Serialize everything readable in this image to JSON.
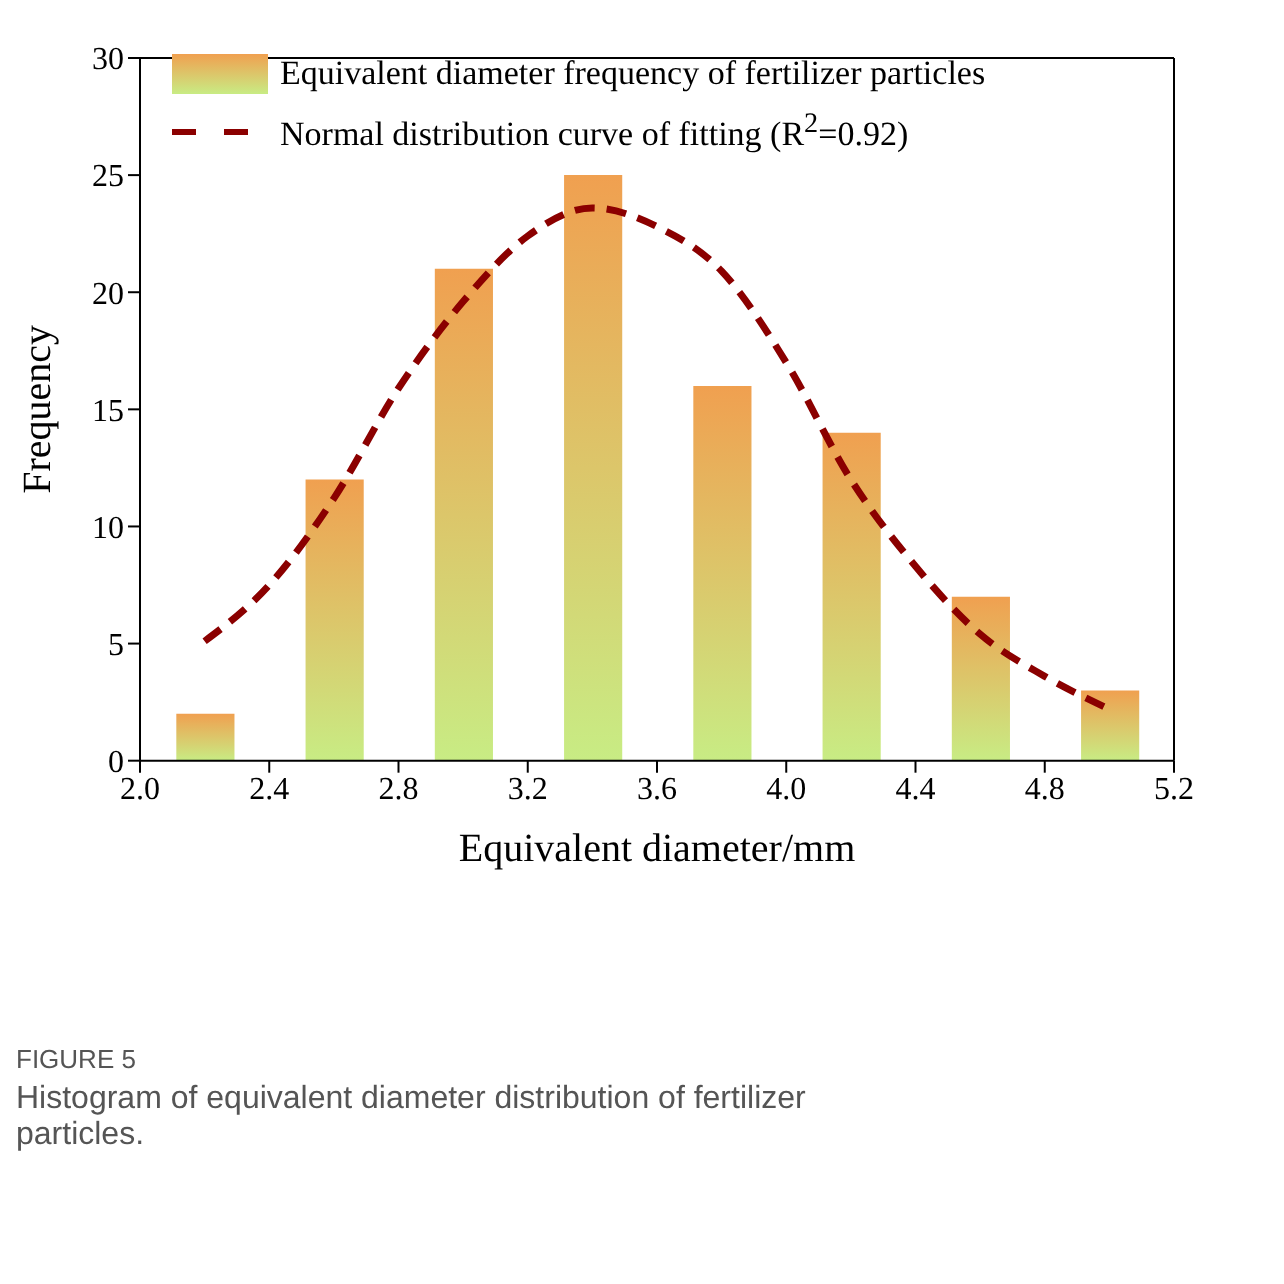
{
  "chart_data": {
    "type": "bar",
    "xlabel": "Equivalent diameter/mm",
    "ylabel": "Frequency",
    "x": [
      2.2,
      2.6,
      3.0,
      3.4,
      3.8,
      4.2,
      4.6,
      5.0
    ],
    "series": [
      {
        "name": "Equivalent diameter frequency of fertilizer particles",
        "color": "#f0a050",
        "values": [
          2,
          12,
          21,
          25,
          16,
          14,
          7,
          3
        ]
      },
      {
        "name": "Normal distribution curve of fitting (R$^{2}$=0.92)",
        "type": "line",
        "color": "#8b0000",
        "line_style": "dashed",
        "x": [
          2.2,
          2.4,
          2.6,
          2.8,
          3.0,
          3.2,
          3.4,
          3.6,
          3.8,
          4.0,
          4.2,
          4.4,
          4.6,
          4.8,
          5.0
        ],
        "values": [
          5.1,
          7.5,
          11.2,
          15.9,
          19.6,
          22.4,
          23.6,
          22.8,
          20.9,
          17,
          12,
          8.3,
          5.4,
          3.6,
          2.2
        ]
      }
    ],
    "xlim": [
      2.0,
      5.2
    ],
    "xticks": [
      {
        "value": 2.0,
        "label": "2.0"
      },
      2.4,
      2.8,
      3.2,
      3.6,
      {
        "value": 4.0,
        "label": "4.0"
      },
      4.4,
      4.8,
      5.2
    ],
    "ylim": [
      0,
      30
    ],
    "yticks": [
      0,
      5,
      10,
      15,
      20,
      25,
      30
    ],
    "grid": false,
    "legend": "top left",
    "marker": "none",
    "annotations": [
      "FIGURE 5",
      "Histogram of equivalent diameter distribution of fertilizer particles."
    ]
  }
}
